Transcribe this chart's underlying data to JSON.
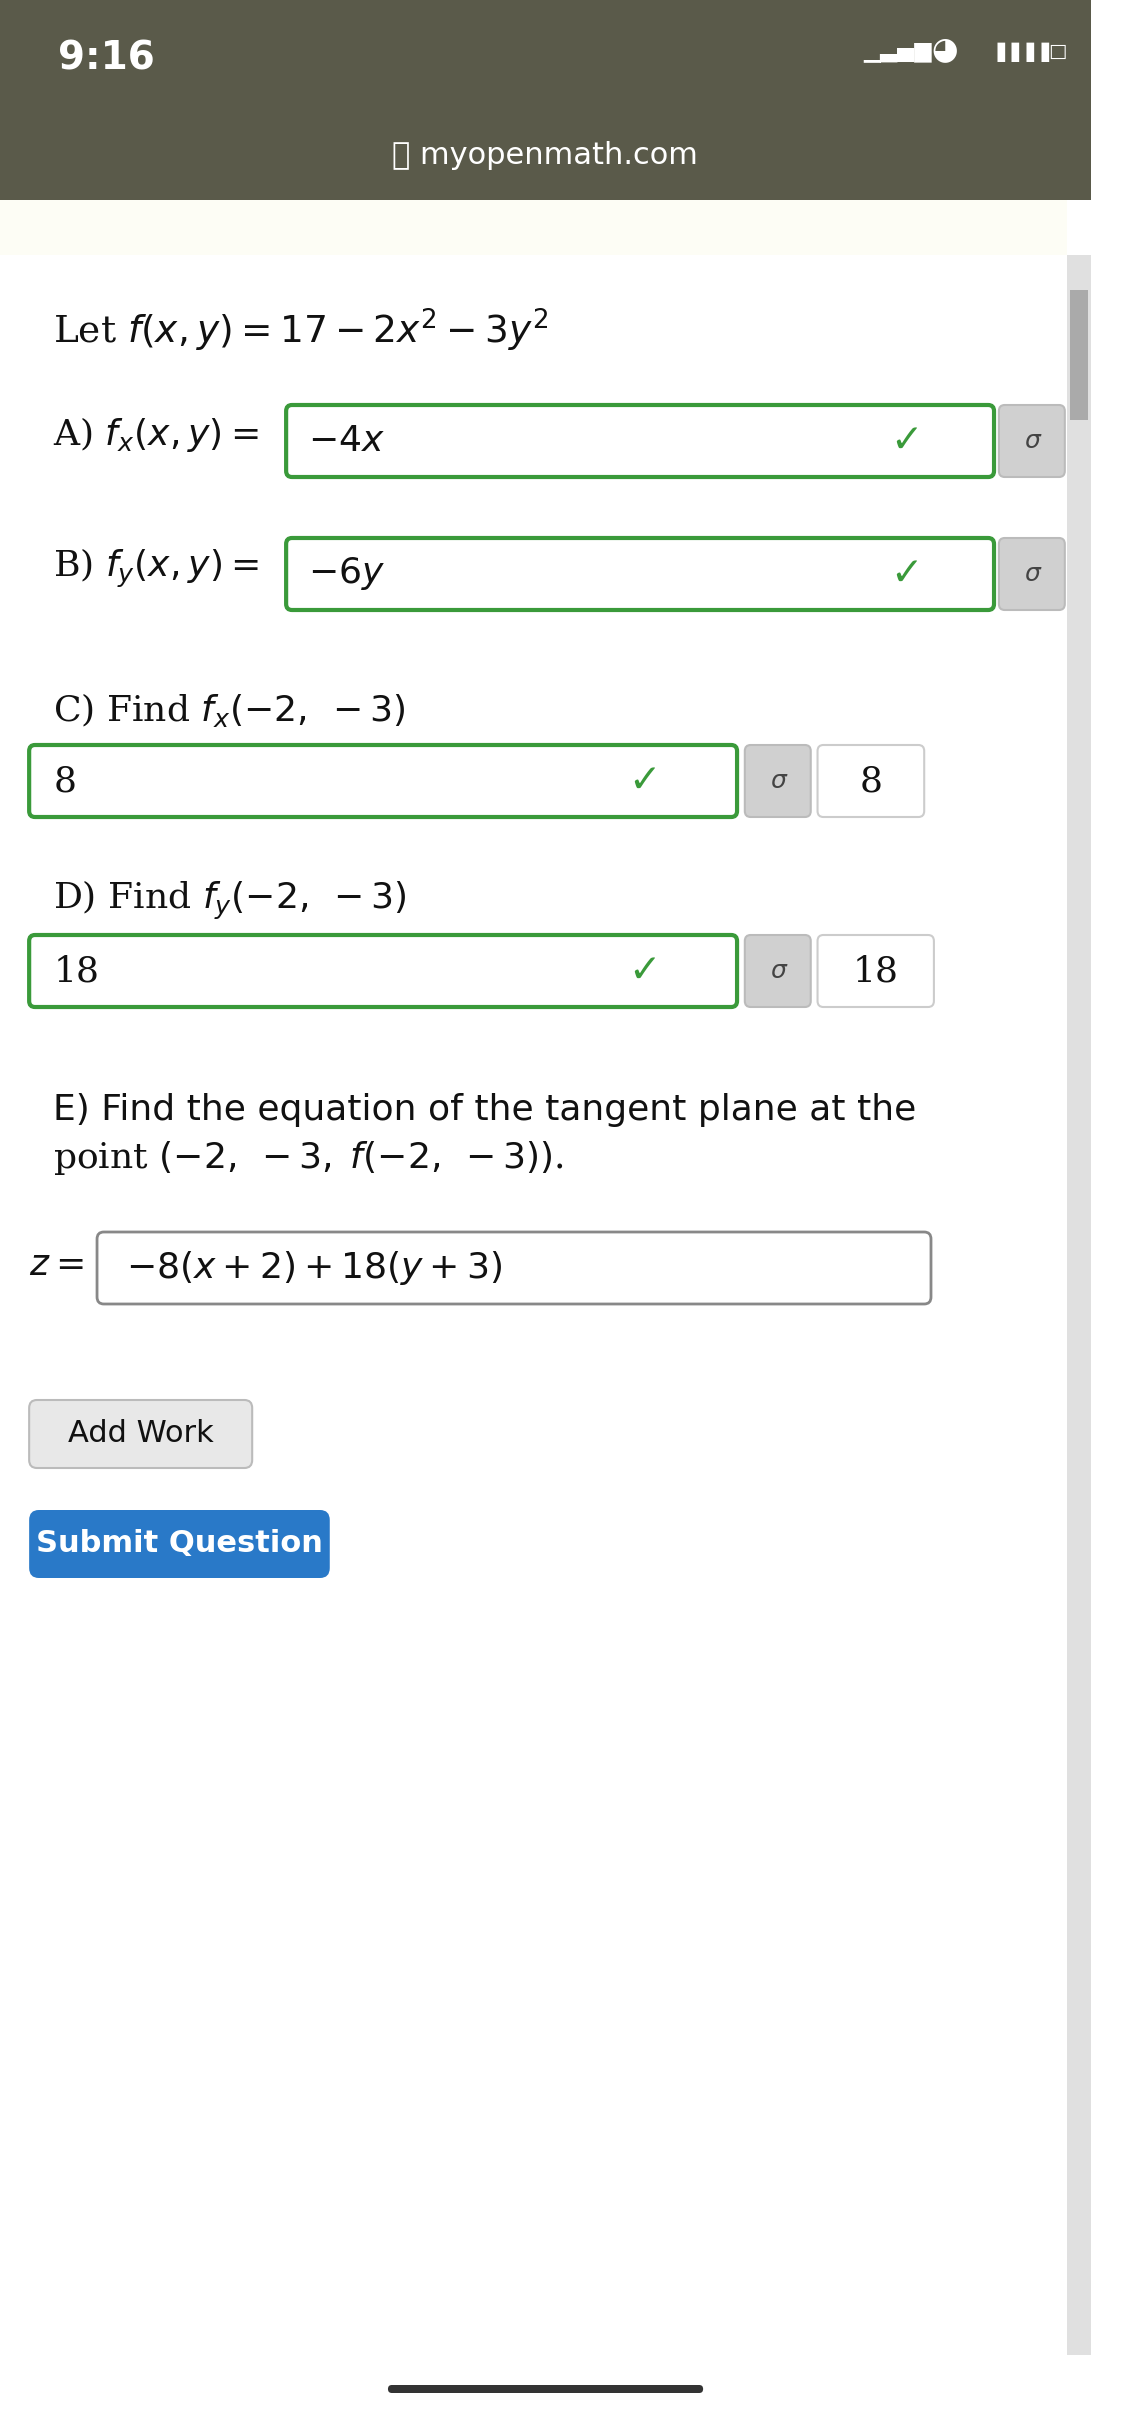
{
  "status_bar_time": "9:16",
  "website": "myopenmath.com",
  "header_bg": "#5a5a4a",
  "body_bg": "#ffffff",
  "cream_bg": "#fdfdf5",
  "green_border": "#3a9a3a",
  "green_check": "#3a9a3a",
  "blue_button_bg": "#2979c8",
  "text_color": "#111111",
  "add_work": "Add Work",
  "submit": "Submit Question"
}
